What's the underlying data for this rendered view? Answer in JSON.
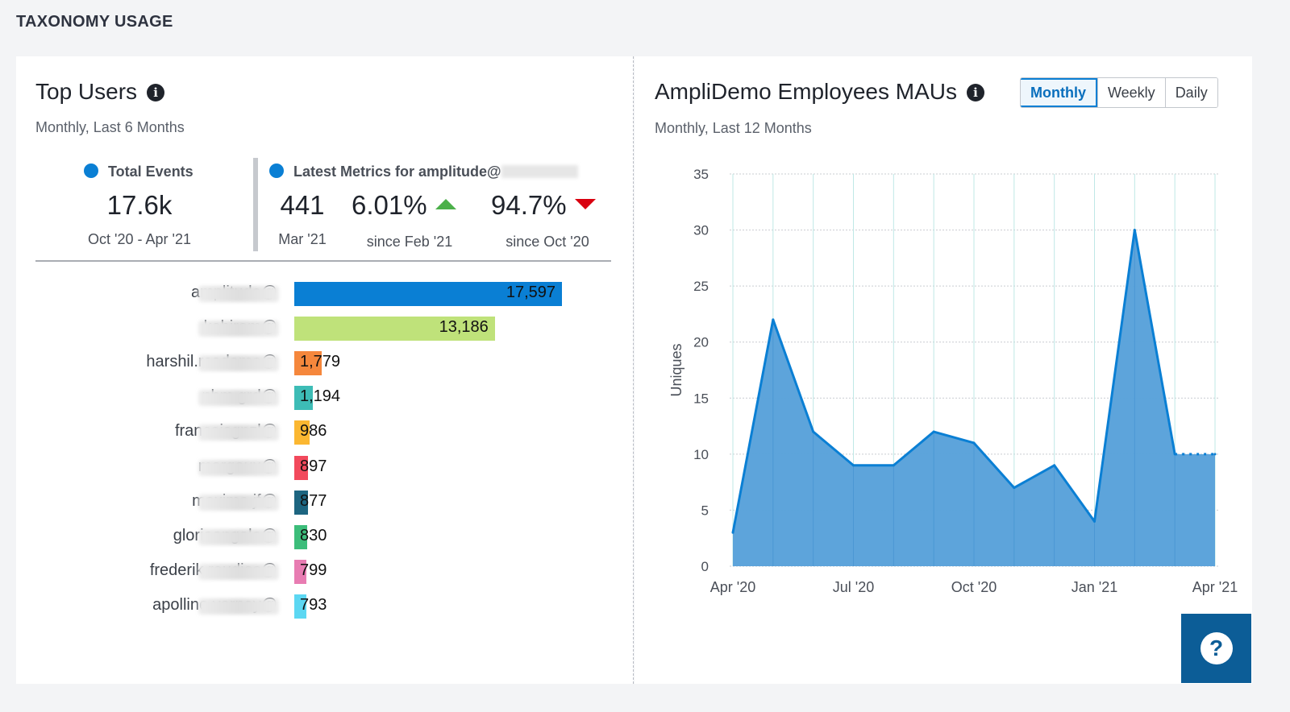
{
  "section_title": "TAXONOMY USAGE",
  "top_users": {
    "title": "Top Users",
    "subtitle": "Monthly, Last 6 Months",
    "total": {
      "label": "Total Events",
      "value": "17.6k",
      "range": "Oct '20 - Apr '21"
    },
    "latest": {
      "label": "Latest Metrics for amplitude@",
      "count": "441",
      "count_period": "Mar '21",
      "change1": "6.01%",
      "change1_period": "since Feb '21",
      "change1_dir": "up",
      "change2": "94.7%",
      "change2_period": "since Oct '20",
      "change2_dir": "down"
    },
    "users": [
      {
        "name": "amplitude@",
        "value": 17597,
        "label": "17,597",
        "color": "#0a7fd4"
      },
      {
        "name": "kabiram@",
        "value": 13186,
        "label": "13,186",
        "color": "#bfe27a"
      },
      {
        "name": "harshil.rcademo@",
        "value": 1779,
        "label": "1,779",
        "color": "#f5873c"
      },
      {
        "name": "nhm.grd@",
        "value": 1194,
        "label": "1,194",
        "color": "#3dbcb6"
      },
      {
        "name": "francoisgnzl@",
        "value": 986,
        "label": "986",
        "color": "#fbb731"
      },
      {
        "name": "margaux@",
        "value": 897,
        "label": "897",
        "color": "#f2495c"
      },
      {
        "name": "maxime.jf@",
        "value": 877,
        "label": "877",
        "color": "#1d6580"
      },
      {
        "name": "gloriaengale@",
        "value": 830,
        "label": "830",
        "color": "#3cbd7a"
      },
      {
        "name": "frederik.raudies@",
        "value": 799,
        "label": "799",
        "color": "#e87cb2"
      },
      {
        "name": "apolline.vernay@",
        "value": 793,
        "label": "793",
        "color": "#5cd7f2"
      }
    ]
  },
  "maus": {
    "title": "AmpliDemo Employees MAUs",
    "subtitle": "Monthly, Last 12 Months",
    "toggle": [
      "Monthly",
      "Weekly",
      "Daily"
    ],
    "toggle_active": "Monthly"
  },
  "chart_data": {
    "type": "area",
    "ylabel": "Uniques",
    "ylim": [
      0,
      35
    ],
    "yticks": [
      0,
      5,
      10,
      15,
      20,
      25,
      30,
      35
    ],
    "x": [
      "Apr '20",
      "May '20",
      "Jun '20",
      "Jul '20",
      "Aug '20",
      "Sep '20",
      "Oct '20",
      "Nov '20",
      "Dec '20",
      "Jan '21",
      "Feb '21",
      "Mar '21",
      "Apr '21"
    ],
    "xtick_labels": [
      "Apr '20",
      "Jul '20",
      "Oct '20",
      "Jan '21",
      "Apr '21"
    ],
    "values": [
      3,
      22,
      12,
      9,
      9,
      12,
      11,
      7,
      9,
      4,
      30,
      10,
      10
    ],
    "incomplete_last_period": true,
    "color": "#0a7fd4",
    "fill": "#5aa2da"
  },
  "help": {
    "label": "?"
  }
}
